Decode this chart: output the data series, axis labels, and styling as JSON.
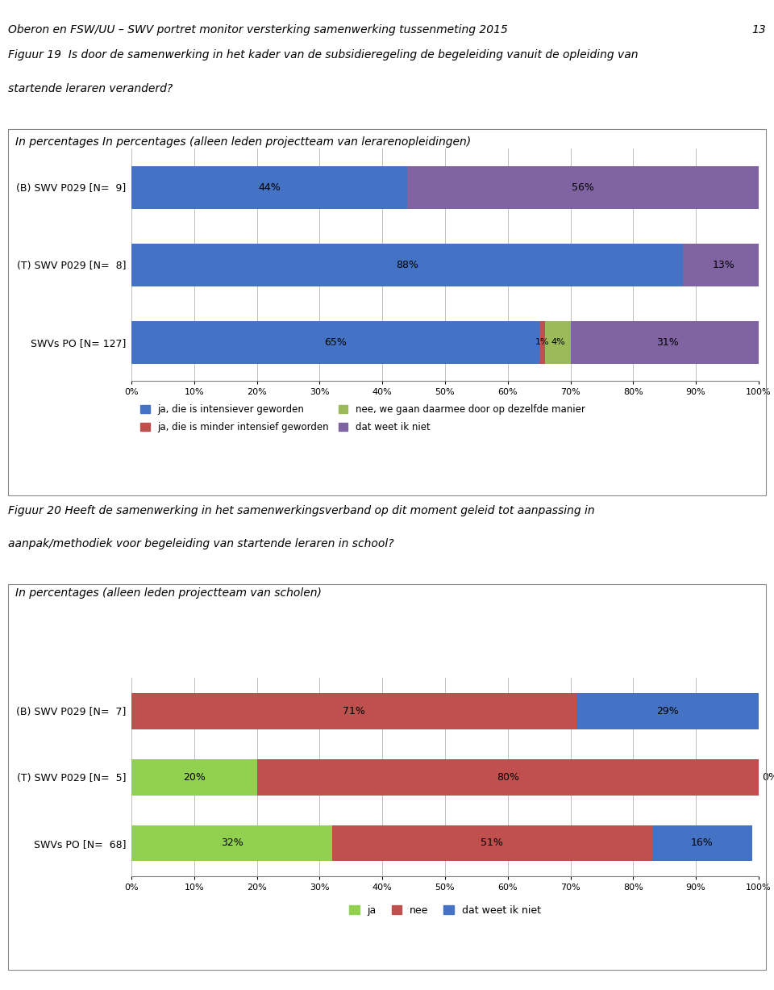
{
  "header_text": "Oberon en FSW/UU – SWV portret monitor versterking samenwerking tussenmeting 2015",
  "header_page": "13",
  "fig19_title_line1": "Figuur 19  Is door de samenwerking in het kader van de subsidieregeling de begeleiding vanuit de opleiding van",
  "fig19_title_line2": "startende leraren veranderd?",
  "fig19_subtitle": "In percentages In percentages (alleen leden projectteam van lerarenopleidingen)",
  "fig19_categories": [
    "(B) SWV P029 [N=  9]",
    "(T) SWV P029 [N=  8]",
    "SWVs PO [N= 127]"
  ],
  "fig19_data": {
    "intensiever": [
      44,
      88,
      65
    ],
    "minder": [
      0,
      0,
      1
    ],
    "nee_door": [
      0,
      0,
      4
    ],
    "weet_niet": [
      56,
      13,
      31
    ]
  },
  "fig19_colors": {
    "intensiever": "#4472C4",
    "minder": "#C0504D",
    "nee_door": "#9BBB59",
    "weet_niet": "#8064A2"
  },
  "fig19_legend": [
    "ja, die is intensiever geworden",
    "ja, die is minder intensief geworden",
    "nee, we gaan daarmee door op dezelfde manier",
    "dat weet ik niet"
  ],
  "fig20_title_line1": "Figuur 20 Heeft de samenwerking in het samenwerkingsverband op dit moment geleid tot aanpassing in",
  "fig20_title_line2": "aanpak/methodiek voor begeleiding van startende leraren in school?",
  "fig20_subtitle": "In percentages (alleen leden projectteam van scholen)",
  "fig20_categories": [
    "(B) SWV P029 [N=  7]",
    "(T) SWV P029 [N=  5]",
    "SWVs PO [N=  68]"
  ],
  "fig20_data": {
    "ja": [
      0,
      20,
      32
    ],
    "nee": [
      71,
      80,
      51
    ],
    "weet_niet": [
      29,
      0,
      16
    ]
  },
  "fig20_colors": {
    "ja": "#92D050",
    "nee": "#C0504D",
    "weet_niet": "#4472C4"
  },
  "fig20_legend": [
    "ja",
    "nee",
    "dat weet ik niet"
  ],
  "bg_color": "#FFFFFF",
  "bar_height": 0.55,
  "font_size_label": 9,
  "font_size_title": 10,
  "font_size_header": 10
}
